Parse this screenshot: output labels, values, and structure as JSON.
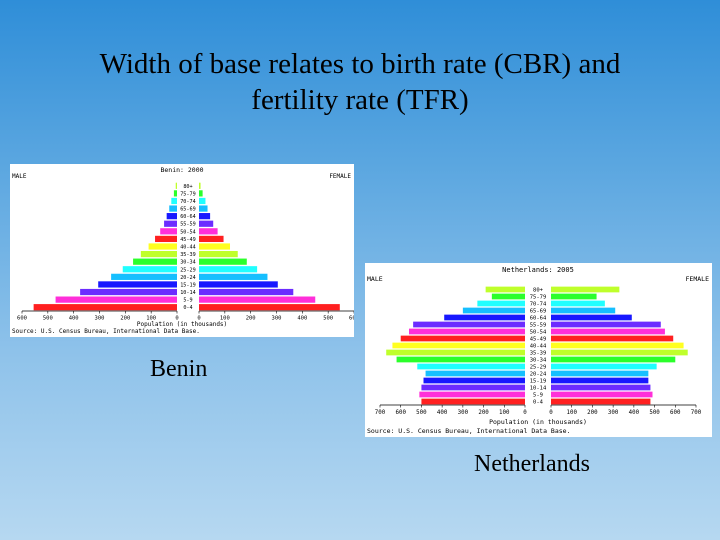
{
  "slide": {
    "title_line1": "Width of base relates to birth rate (CBR) and",
    "title_line2": "fertility rate (TFR)"
  },
  "chart_data": [
    {
      "type": "bar",
      "subtype": "population-pyramid",
      "title": "Benin: 2000",
      "caption": "Benin",
      "male_label": "MALE",
      "female_label": "FEMALE",
      "xlabel": "Population (in thousands)",
      "source": "Source: U.S. Census Bureau, International Data Base.",
      "xlim": [
        0,
        600
      ],
      "x_ticks": [
        "600",
        "500",
        "400",
        "300",
        "200",
        "100",
        "0",
        "0",
        "100",
        "200",
        "300",
        "400",
        "500",
        "600"
      ],
      "categories": [
        "0-4",
        "5-9",
        "10-14",
        "15-19",
        "20-24",
        "25-29",
        "30-34",
        "35-39",
        "40-44",
        "45-49",
        "50-54",
        "55-59",
        "60-64",
        "65-69",
        "70-74",
        "75-79",
        "80+"
      ],
      "series": [
        {
          "name": "MALE",
          "values": [
            555,
            470,
            375,
            305,
            255,
            210,
            170,
            140,
            110,
            85,
            65,
            50,
            40,
            30,
            22,
            12,
            5
          ]
        },
        {
          "name": "FEMALE",
          "values": [
            545,
            450,
            365,
            305,
            265,
            225,
            185,
            150,
            120,
            95,
            72,
            55,
            43,
            33,
            25,
            14,
            6
          ]
        }
      ]
    },
    {
      "type": "bar",
      "subtype": "population-pyramid",
      "title": "Netherlands: 2005",
      "caption": "Netherlands",
      "male_label": "MALE",
      "female_label": "FEMALE",
      "xlabel": "Population (in thousands)",
      "source": "Source: U.S. Census Bureau, International Data Base.",
      "xlim": [
        0,
        700
      ],
      "x_ticks": [
        "700",
        "600",
        "500",
        "400",
        "300",
        "200",
        "100",
        "0",
        "0",
        "100",
        "200",
        "300",
        "400",
        "500",
        "600",
        "700"
      ],
      "categories": [
        "0-4",
        "5-9",
        "10-14",
        "15-19",
        "20-24",
        "25-29",
        "30-34",
        "35-39",
        "40-44",
        "45-49",
        "50-54",
        "55-59",
        "60-64",
        "65-69",
        "70-74",
        "75-79",
        "80+"
      ],
      "series": [
        {
          "name": "MALE",
          "values": [
            500,
            510,
            500,
            490,
            480,
            520,
            620,
            670,
            640,
            600,
            560,
            540,
            390,
            300,
            230,
            160,
            190
          ]
        },
        {
          "name": "FEMALE",
          "values": [
            480,
            490,
            480,
            470,
            470,
            510,
            600,
            660,
            640,
            590,
            550,
            530,
            390,
            310,
            260,
            220,
            330
          ]
        }
      ]
    }
  ]
}
